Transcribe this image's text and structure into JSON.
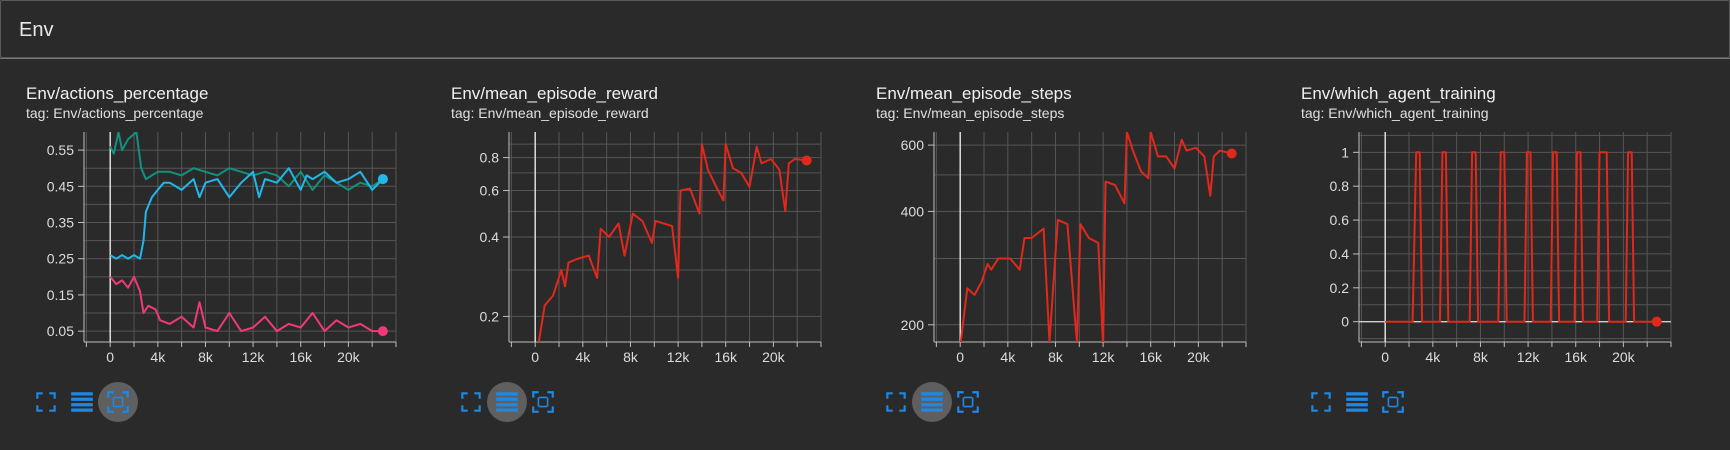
{
  "group": {
    "title": "Env"
  },
  "colors": {
    "teal": "#13917e",
    "cyan": "#21b7ea",
    "pink": "#f0397a",
    "red": "#e0291c",
    "grid": "#565656",
    "axis": "#bdbdbd",
    "icon": "#1e88e5",
    "active_button": "#5f5f5f"
  },
  "cards": [
    {
      "title": "Env/actions_percentage",
      "tag": "tag: Env/actions_percentage",
      "active_button": "fit"
    },
    {
      "title": "Env/mean_episode_reward",
      "tag": "tag: Env/mean_episode_reward",
      "active_button": "data"
    },
    {
      "title": "Env/mean_episode_steps",
      "tag": "tag: Env/mean_episode_steps",
      "active_button": "data"
    },
    {
      "title": "Env/which_agent_training",
      "tag": "tag: Env/which_agent_training",
      "active_button": "none"
    }
  ],
  "toolbar": {
    "icons": [
      "fullscreen-icon",
      "toggle-data-icon",
      "fit-domain-icon"
    ]
  },
  "chart_data": [
    {
      "type": "line",
      "xlim": [
        -2200,
        24000
      ],
      "ylim": [
        0.02,
        0.6
      ],
      "xticks": [
        0,
        4000,
        8000,
        12000,
        16000,
        20000
      ],
      "xtick_labels": [
        "0",
        "4k",
        "8k",
        "12k",
        "16k",
        "20k"
      ],
      "yticks": [
        0.05,
        0.15,
        0.25,
        0.35,
        0.45,
        0.55
      ],
      "ytick_labels": [
        "0.05",
        "0.15",
        "0.25",
        "0.35",
        "0.45",
        "0.55"
      ],
      "grid": true,
      "series": [
        {
          "color": "teal",
          "x": [
            0,
            300,
            700,
            1000,
            1500,
            2200,
            2600,
            3000,
            3500,
            4000,
            5000,
            6000,
            7000,
            8000,
            9000,
            10000,
            11000,
            12000,
            13000,
            14000,
            15000,
            16000,
            17000,
            18000,
            19000,
            20000,
            21000,
            22000,
            22900
          ],
          "y": [
            0.56,
            0.54,
            0.6,
            0.55,
            0.58,
            0.6,
            0.5,
            0.47,
            0.48,
            0.49,
            0.49,
            0.48,
            0.5,
            0.49,
            0.48,
            0.5,
            0.49,
            0.48,
            0.49,
            0.48,
            0.45,
            0.49,
            0.44,
            0.48,
            0.46,
            0.44,
            0.46,
            0.45,
            0.47
          ]
        },
        {
          "color": "cyan",
          "x": [
            0,
            500,
            1000,
            1500,
            2000,
            2500,
            2800,
            3000,
            3500,
            4000,
            4500,
            5000,
            6000,
            7000,
            7500,
            8000,
            9000,
            10000,
            11000,
            12000,
            12500,
            13000,
            14000,
            15000,
            16000,
            16500,
            17000,
            18000,
            19000,
            20000,
            21000,
            22000,
            22900
          ],
          "y": [
            0.26,
            0.25,
            0.26,
            0.25,
            0.26,
            0.25,
            0.3,
            0.38,
            0.42,
            0.44,
            0.46,
            0.46,
            0.44,
            0.47,
            0.42,
            0.46,
            0.47,
            0.42,
            0.46,
            0.49,
            0.42,
            0.47,
            0.46,
            0.5,
            0.44,
            0.48,
            0.47,
            0.49,
            0.46,
            0.47,
            0.49,
            0.44,
            0.47
          ]
        },
        {
          "color": "pink",
          "x": [
            0,
            500,
            1000,
            1500,
            2000,
            2500,
            2800,
            3200,
            3800,
            4200,
            5000,
            6000,
            7000,
            7500,
            8000,
            9000,
            10000,
            11000,
            12000,
            13000,
            14000,
            15000,
            16000,
            17000,
            18000,
            19000,
            20000,
            21000,
            22000,
            22900
          ],
          "y": [
            0.2,
            0.18,
            0.19,
            0.17,
            0.2,
            0.16,
            0.1,
            0.12,
            0.11,
            0.08,
            0.07,
            0.09,
            0.06,
            0.13,
            0.06,
            0.05,
            0.1,
            0.05,
            0.06,
            0.09,
            0.05,
            0.07,
            0.06,
            0.1,
            0.05,
            0.08,
            0.06,
            0.07,
            0.05,
            0.05
          ]
        }
      ]
    },
    {
      "type": "line",
      "xlim": [
        -2200,
        24000
      ],
      "ylim": [
        0.16,
        1.0
      ],
      "yscale": "log",
      "xticks": [
        0,
        4000,
        8000,
        12000,
        16000,
        20000
      ],
      "xtick_labels": [
        "0",
        "4k",
        "8k",
        "12k",
        "16k",
        "20k"
      ],
      "yticks": [
        0.2,
        0.4,
        0.6,
        0.8
      ],
      "ytick_labels": [
        "0.2",
        "0.4",
        "0.6",
        "0.8"
      ],
      "grid": true,
      "series": [
        {
          "color": "red",
          "x": [
            300,
            800,
            1500,
            2200,
            2500,
            2800,
            3500,
            4500,
            5200,
            5500,
            6200,
            7000,
            7500,
            8200,
            9000,
            9800,
            10100,
            10800,
            11500,
            12000,
            12200,
            13000,
            13800,
            14000,
            14500,
            15200,
            15800,
            16000,
            16600,
            17300,
            18000,
            18600,
            19000,
            19800,
            20500,
            21000,
            21300,
            21800,
            22800
          ],
          "y": [
            0.16,
            0.22,
            0.24,
            0.3,
            0.26,
            0.32,
            0.33,
            0.34,
            0.28,
            0.43,
            0.4,
            0.45,
            0.34,
            0.49,
            0.46,
            0.38,
            0.46,
            0.45,
            0.44,
            0.28,
            0.6,
            0.61,
            0.49,
            0.9,
            0.72,
            0.62,
            0.55,
            0.9,
            0.73,
            0.7,
            0.62,
            0.88,
            0.76,
            0.79,
            0.72,
            0.5,
            0.76,
            0.79,
            0.78
          ]
        }
      ]
    },
    {
      "type": "line",
      "xlim": [
        -2200,
        24000
      ],
      "ylim": [
        180,
        650
      ],
      "yscale": "log",
      "xticks": [
        0,
        4000,
        8000,
        12000,
        16000,
        20000
      ],
      "xtick_labels": [
        "0",
        "4k",
        "8k",
        "12k",
        "16k",
        "20k"
      ],
      "yticks": [
        200,
        400,
        600
      ],
      "ytick_labels": [
        "200",
        "400",
        "600"
      ],
      "grid": true,
      "series": [
        {
          "color": "red",
          "x": [
            0,
            600,
            1200,
            1800,
            2300,
            2600,
            3200,
            4200,
            5000,
            5400,
            6000,
            7000,
            7500,
            8200,
            9000,
            9800,
            10100,
            10800,
            11600,
            12000,
            12200,
            13000,
            13800,
            14000,
            14500,
            15200,
            15800,
            16000,
            16600,
            17300,
            18000,
            18600,
            19000,
            19800,
            20500,
            21000,
            21300,
            21800,
            22800
          ],
          "y": [
            175,
            250,
            240,
            260,
            290,
            280,
            300,
            300,
            280,
            340,
            340,
            360,
            180,
            380,
            370,
            180,
            370,
            340,
            330,
            175,
            480,
            470,
            420,
            650,
            580,
            510,
            490,
            650,
            560,
            560,
            520,
            620,
            580,
            590,
            560,
            440,
            560,
            580,
            570
          ]
        }
      ]
    },
    {
      "type": "line",
      "xlim": [
        -2200,
        24000
      ],
      "ylim": [
        -0.12,
        1.12
      ],
      "xticks": [
        0,
        4000,
        8000,
        12000,
        16000,
        20000
      ],
      "xtick_labels": [
        "0",
        "4k",
        "8k",
        "12k",
        "16k",
        "20k"
      ],
      "yticks": [
        0,
        0.2,
        0.4,
        0.6,
        0.8,
        1
      ],
      "ytick_labels": [
        "0",
        "0.2",
        "0.4",
        "0.6",
        "0.8",
        "1"
      ],
      "grid": true,
      "series": [
        {
          "color": "red",
          "x": [
            0,
            2300,
            2600,
            2900,
            3100,
            4600,
            4800,
            5100,
            5300,
            7100,
            7300,
            7600,
            7800,
            9500,
            9700,
            10000,
            10200,
            11700,
            11900,
            12200,
            12400,
            13900,
            14100,
            14400,
            14600,
            15900,
            16100,
            16400,
            16600,
            17800,
            18000,
            18600,
            18800,
            20200,
            20400,
            20700,
            20900,
            22800
          ],
          "y": [
            0,
            0,
            1,
            1,
            0,
            0,
            1,
            1,
            0,
            0,
            1,
            1,
            0,
            0,
            1,
            1,
            0,
            0,
            1,
            1,
            0,
            0,
            1,
            1,
            0,
            0,
            1,
            1,
            0,
            0,
            1,
            1,
            0,
            0,
            1,
            1,
            0,
            0
          ]
        }
      ]
    }
  ]
}
